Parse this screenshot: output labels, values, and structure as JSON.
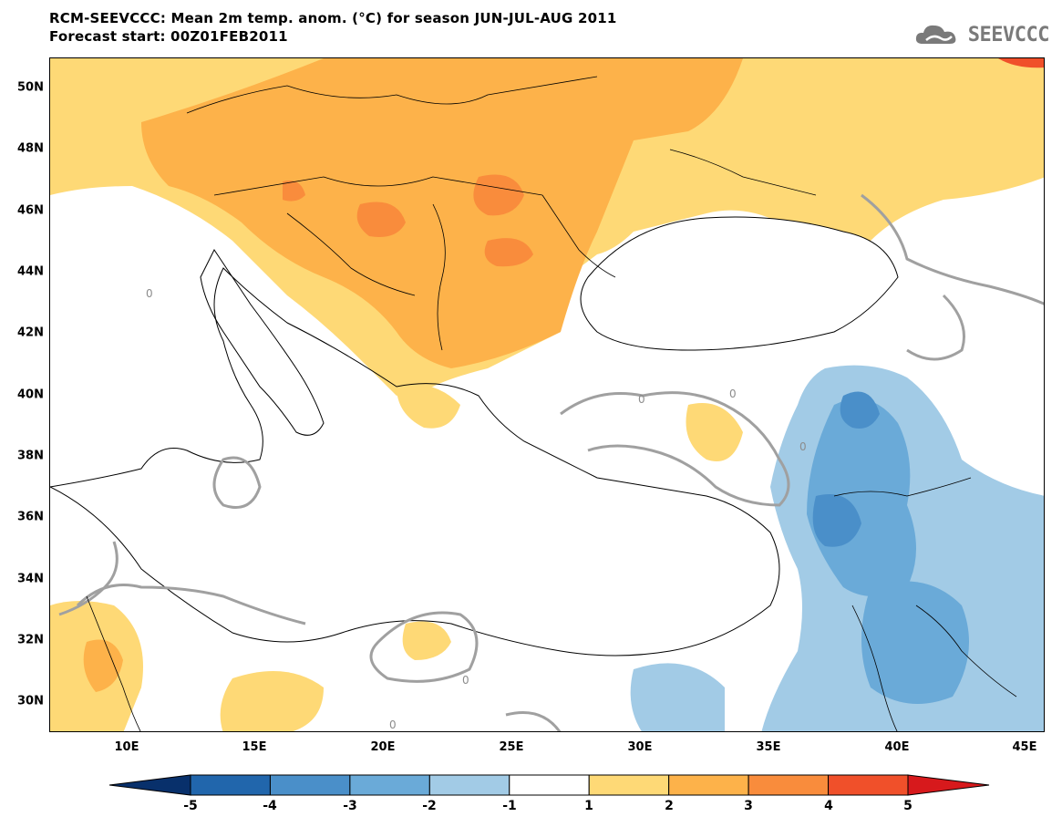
{
  "header": {
    "line1": "RCM-SEEVCCC: Mean 2m temp. anom. (°C) for season JUN-JUL-AUG 2011",
    "line2": "Forecast start: 00Z01FEB2011"
  },
  "logo": {
    "text": "SEEVCCC",
    "icon": "cloud-logo-icon",
    "color": "#7a7a7a"
  },
  "map": {
    "lat_labels": [
      "50N",
      "48N",
      "46N",
      "44N",
      "42N",
      "40N",
      "38N",
      "36N",
      "34N",
      "32N",
      "30N"
    ],
    "lon_labels": [
      "10E",
      "15E",
      "20E",
      "25E",
      "30E",
      "35E",
      "40E",
      "45E"
    ],
    "contour_labels": [
      "0",
      "0",
      "0",
      "0",
      "0",
      "0"
    ],
    "land_stroke": "#000000",
    "contour_color": "#a0a0a0"
  },
  "colorbar": {
    "tick_labels": [
      "-5",
      "-4",
      "-3",
      "-2",
      "-1",
      "1",
      "2",
      "3",
      "4",
      "5"
    ],
    "colors": [
      "#08306b",
      "#2166ac",
      "#4a8fc9",
      "#6aaad8",
      "#a2cbe6",
      "#ffffff",
      "#fed976",
      "#fdb24a",
      "#f98c3c",
      "#f0502a",
      "#d7191c"
    ]
  }
}
